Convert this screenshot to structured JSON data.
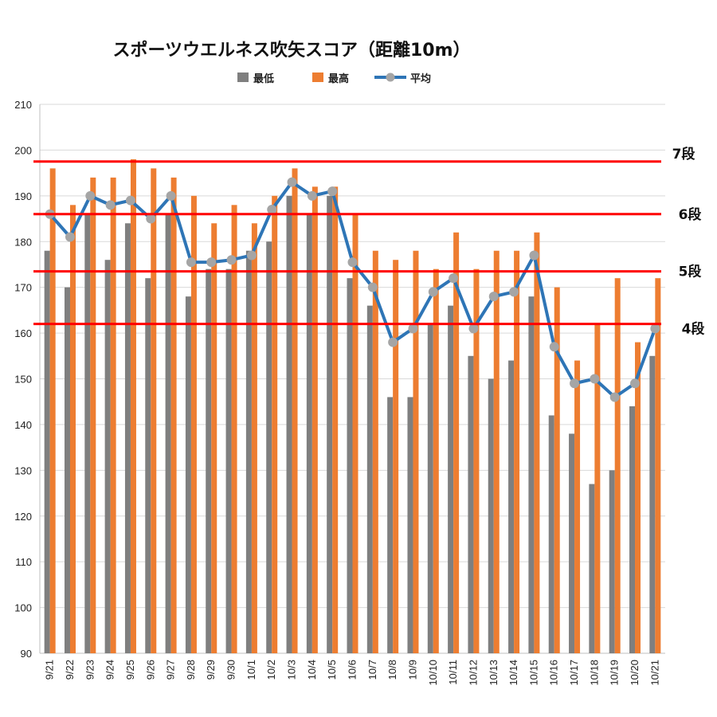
{
  "chart_data": {
    "type": "bar",
    "title": "スポーツウエルネス吹矢スコア（距離10m）",
    "xlabel": "",
    "ylabel": "",
    "ylim": [
      90,
      210
    ],
    "yticks": [
      "90",
      "100",
      "110",
      "120",
      "130",
      "140",
      "150",
      "160",
      "170",
      "180",
      "190",
      "200",
      "210"
    ],
    "grid": true,
    "legend_position": "top",
    "categories": [
      "9/21",
      "9/22",
      "9/23",
      "9/24",
      "9/25",
      "9/26",
      "9/27",
      "9/28",
      "9/29",
      "9/30",
      "10/1",
      "10/2",
      "10/3",
      "10/4",
      "10/5",
      "10/6",
      "10/7",
      "10/8",
      "10/9",
      "10/10",
      "10/11",
      "10/12",
      "10/13",
      "10/14",
      "10/15",
      "10/16",
      "10/17",
      "10/18",
      "10/19",
      "10/20",
      "10/21"
    ],
    "series": [
      {
        "name": "最低",
        "type": "bar",
        "color": "#7f7f7f",
        "values": [
          178,
          170,
          186,
          176,
          184,
          172,
          186,
          168,
          174,
          174,
          178,
          180,
          190,
          186,
          190,
          172,
          166,
          146,
          146,
          162,
          166,
          155,
          150,
          154,
          168,
          142,
          138,
          127,
          130,
          144,
          155
        ]
      },
      {
        "name": "最高",
        "type": "bar",
        "color": "#ed7d31",
        "values": [
          196,
          188,
          194,
          194,
          198,
          196,
          194,
          190,
          184,
          188,
          184,
          190,
          196,
          192,
          192,
          186,
          178,
          176,
          178,
          174,
          182,
          174,
          178,
          178,
          182,
          170,
          154,
          162,
          172,
          158,
          172
        ]
      },
      {
        "name": "平均",
        "type": "line",
        "color": "#2e75b6",
        "marker_color": "#a5a5a5",
        "values": [
          186,
          181,
          190,
          188,
          189,
          185,
          190,
          175.5,
          175.5,
          176,
          177,
          187,
          193,
          190,
          191,
          175.5,
          170,
          158,
          161,
          169,
          172,
          161,
          168,
          169,
          177,
          157,
          149,
          150,
          146,
          149,
          161
        ]
      }
    ],
    "reference_lines": [
      {
        "label": "7段",
        "value": 197.5,
        "color": "#ff0000"
      },
      {
        "label": "6段",
        "value": 186,
        "color": "#ff0000"
      },
      {
        "label": "5段",
        "value": 173.5,
        "color": "#ff0000"
      },
      {
        "label": "4段",
        "value": 162,
        "color": "#ff0000"
      }
    ]
  }
}
